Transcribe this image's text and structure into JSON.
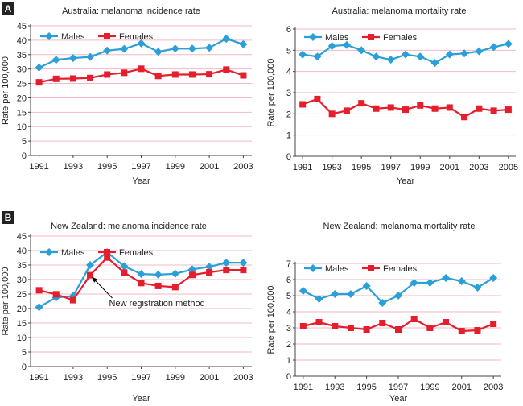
{
  "panels": [
    {
      "label": "A"
    },
    {
      "label": "B"
    }
  ],
  "colors": {
    "males": "#2a9fd8",
    "females": "#e41e2c",
    "grid": "#f2b9c4",
    "axis": "#444444",
    "text": "#222222"
  },
  "chart_data": [
    {
      "type": "line",
      "title": "Australia: melanoma incidence rate",
      "xlabel": "Year",
      "ylabel": "Rate per 100,000",
      "ylim": [
        0,
        45
      ],
      "yticks": [
        0,
        5,
        10,
        15,
        20,
        25,
        30,
        35,
        40,
        45
      ],
      "xlim": [
        1990.5,
        2003.5
      ],
      "xticks": [
        1991,
        1993,
        1995,
        1997,
        1999,
        2001,
        2003
      ],
      "legend": "top-left",
      "series": [
        {
          "name": "Males",
          "marker": "diamond",
          "x": [
            1991,
            1992,
            1993,
            1994,
            1995,
            1996,
            1997,
            1998,
            1999,
            2000,
            2001,
            2002,
            2003
          ],
          "values": [
            30.5,
            33.2,
            33.8,
            34.2,
            36.4,
            37.0,
            38.9,
            36.0,
            37.1,
            37.1,
            37.4,
            40.5,
            38.6
          ]
        },
        {
          "name": "Females",
          "marker": "square",
          "x": [
            1991,
            1992,
            1993,
            1994,
            1995,
            1996,
            1997,
            1998,
            1999,
            2000,
            2001,
            2002,
            2003
          ],
          "values": [
            25.4,
            26.6,
            26.7,
            26.9,
            28.1,
            28.7,
            30.1,
            27.6,
            28.1,
            28.1,
            28.2,
            29.8,
            27.8
          ]
        }
      ],
      "annotations": []
    },
    {
      "type": "line",
      "title": "Australia: melanoma mortality rate",
      "xlabel": "Year",
      "ylabel": "Rate per 100,000",
      "ylim": [
        0,
        6
      ],
      "yticks": [
        0,
        1,
        2,
        3,
        4,
        5,
        6
      ],
      "xlim": [
        1990.5,
        2005.5
      ],
      "xticks": [
        1991,
        1993,
        1995,
        1997,
        1999,
        2001,
        2003,
        2005
      ],
      "legend": "top-left",
      "series": [
        {
          "name": "Males",
          "marker": "diamond",
          "x": [
            1991,
            1992,
            1993,
            1994,
            1995,
            1996,
            1997,
            1998,
            1999,
            2000,
            2001,
            2002,
            2003,
            2004,
            2005
          ],
          "values": [
            4.8,
            4.7,
            5.2,
            5.25,
            5.0,
            4.7,
            4.55,
            4.8,
            4.7,
            4.4,
            4.8,
            4.85,
            4.95,
            5.15,
            5.3
          ]
        },
        {
          "name": "Females",
          "marker": "square",
          "x": [
            1991,
            1992,
            1993,
            1994,
            1995,
            1996,
            1997,
            1998,
            1999,
            2000,
            2001,
            2002,
            2003,
            2004,
            2005
          ],
          "values": [
            2.45,
            2.7,
            2.0,
            2.15,
            2.5,
            2.25,
            2.3,
            2.2,
            2.4,
            2.25,
            2.3,
            1.85,
            2.25,
            2.15,
            2.2
          ]
        }
      ],
      "annotations": []
    },
    {
      "type": "line",
      "title": "New Zealand: melanoma incidence rate",
      "xlabel": "Year",
      "ylabel": "Rate per 100,000",
      "ylim": [
        0,
        45
      ],
      "yticks": [
        0,
        5,
        10,
        15,
        20,
        25,
        30,
        35,
        40,
        45
      ],
      "xlim": [
        1990.5,
        2003.5
      ],
      "xticks": [
        1991,
        1993,
        1995,
        1997,
        1999,
        2001,
        2003
      ],
      "legend": "top-left",
      "series": [
        {
          "name": "Males",
          "marker": "diamond",
          "x": [
            1991,
            1992,
            1993,
            1994,
            1995,
            1996,
            1997,
            1998,
            1999,
            2000,
            2001,
            2002,
            2003
          ],
          "values": [
            20.5,
            23.8,
            24.3,
            35.0,
            39.4,
            34.6,
            31.9,
            31.7,
            32.0,
            33.5,
            34.4,
            35.8,
            35.8
          ]
        },
        {
          "name": "Females",
          "marker": "square",
          "x": [
            1991,
            1992,
            1993,
            1994,
            1995,
            1996,
            1997,
            1998,
            1999,
            2000,
            2001,
            2002,
            2003
          ],
          "values": [
            26.3,
            24.9,
            22.9,
            31.5,
            37.6,
            32.4,
            28.8,
            27.8,
            27.4,
            31.6,
            32.5,
            33.3,
            33.3
          ]
        }
      ],
      "annotations": [
        {
          "text": "New registration method",
          "x": 1994,
          "y": 31.5
        }
      ]
    },
    {
      "type": "line",
      "title": "New Zealand: melanoma mortality rate",
      "xlabel": "Year",
      "ylabel": "Rate per 100,000",
      "ylim": [
        0,
        7
      ],
      "yticks": [
        0,
        1,
        2,
        3,
        4,
        5,
        6,
        7
      ],
      "xlim": [
        1990.5,
        2003.5
      ],
      "xticks": [
        1991,
        1993,
        1995,
        1997,
        1999,
        2001,
        2003
      ],
      "legend": "top-left",
      "series": [
        {
          "name": "Males",
          "marker": "diamond",
          "x": [
            1991,
            1992,
            1993,
            1994,
            1995,
            1996,
            1997,
            1998,
            1999,
            2000,
            2001,
            2002,
            2003
          ],
          "values": [
            5.3,
            4.8,
            5.1,
            5.1,
            5.6,
            4.55,
            5.0,
            5.8,
            5.8,
            6.1,
            5.9,
            5.5,
            6.1
          ]
        },
        {
          "name": "Females",
          "marker": "square",
          "x": [
            1991,
            1992,
            1993,
            1994,
            1995,
            1996,
            1997,
            1998,
            1999,
            2000,
            2001,
            2002,
            2003
          ],
          "values": [
            3.1,
            3.35,
            3.1,
            3.0,
            2.9,
            3.3,
            2.9,
            3.55,
            3.0,
            3.35,
            2.8,
            2.85,
            3.25
          ]
        }
      ],
      "annotations": []
    }
  ]
}
